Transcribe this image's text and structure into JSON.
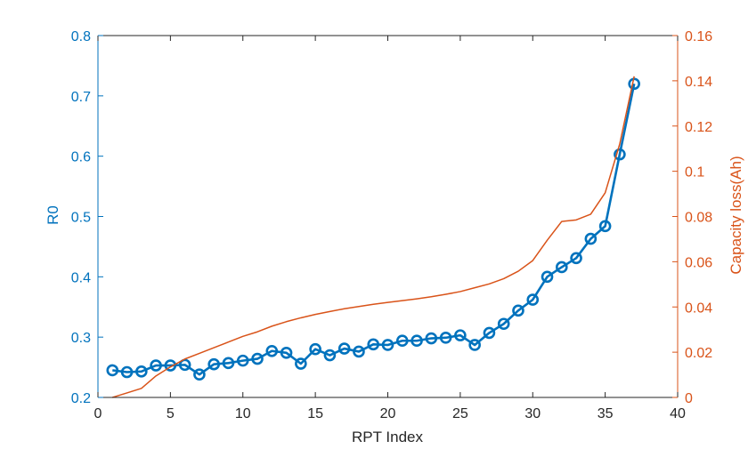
{
  "chart_data": {
    "type": "line",
    "xlabel": "RPT Index",
    "ylabel": "R0",
    "y2label": "Capacity loss(Ah)",
    "xlim": [
      0,
      40
    ],
    "ylim": [
      0.2,
      0.8
    ],
    "y2lim": [
      0,
      0.16
    ],
    "x_ticks": [
      "0",
      "5",
      "10",
      "15",
      "20",
      "25",
      "30",
      "35",
      "40"
    ],
    "y_ticks": [
      "0.2",
      "0.3",
      "0.4",
      "0.5",
      "0.6",
      "0.7",
      "0.8"
    ],
    "y2_ticks": [
      "0",
      "0.02",
      "0.04",
      "0.06",
      "0.08",
      "0.1",
      "0.12",
      "0.14",
      "0.16"
    ],
    "grid": false,
    "colors": {
      "left": "#0072BD",
      "right": "#D95319",
      "axis": "#262626"
    },
    "series": [
      {
        "axis": "left",
        "marker": "circle",
        "x": [
          1,
          2,
          3,
          4,
          5,
          6,
          7,
          8,
          9,
          10,
          11,
          12,
          13,
          14,
          15,
          16,
          17,
          18,
          19,
          20,
          21,
          22,
          23,
          24,
          25,
          26,
          27,
          28,
          29,
          30,
          31,
          32,
          33,
          34,
          35,
          36,
          37
        ],
        "values": [
          0.245,
          0.242,
          0.243,
          0.253,
          0.253,
          0.254,
          0.238,
          0.255,
          0.257,
          0.261,
          0.264,
          0.277,
          0.274,
          0.256,
          0.28,
          0.27,
          0.281,
          0.276,
          0.288,
          0.287,
          0.294,
          0.294,
          0.298,
          0.299,
          0.303,
          0.287,
          0.307,
          0.322,
          0.344,
          0.362,
          0.4,
          0.416,
          0.431,
          0.463,
          0.484,
          0.603,
          0.72
        ]
      },
      {
        "axis": "right",
        "marker": "none",
        "x": [
          1,
          2,
          3,
          4,
          5,
          6,
          7,
          8,
          9,
          10,
          11,
          12,
          13,
          14,
          15,
          16,
          17,
          18,
          19,
          20,
          21,
          22,
          23,
          24,
          25,
          26,
          27,
          28,
          29,
          30,
          31,
          32,
          33,
          34,
          35,
          36,
          37
        ],
        "values": [
          0,
          0.002,
          0.004,
          0.0095,
          0.0135,
          0.017,
          0.0195,
          0.022,
          0.0245,
          0.027,
          0.029,
          0.0315,
          0.0335,
          0.0352,
          0.0367,
          0.038,
          0.0392,
          0.0402,
          0.0412,
          0.042,
          0.0428,
          0.0436,
          0.0445,
          0.0456,
          0.0468,
          0.0485,
          0.0502,
          0.0525,
          0.0558,
          0.0605,
          0.0695,
          0.0778,
          0.0785,
          0.081,
          0.0905,
          0.112,
          0.142
        ]
      }
    ]
  }
}
